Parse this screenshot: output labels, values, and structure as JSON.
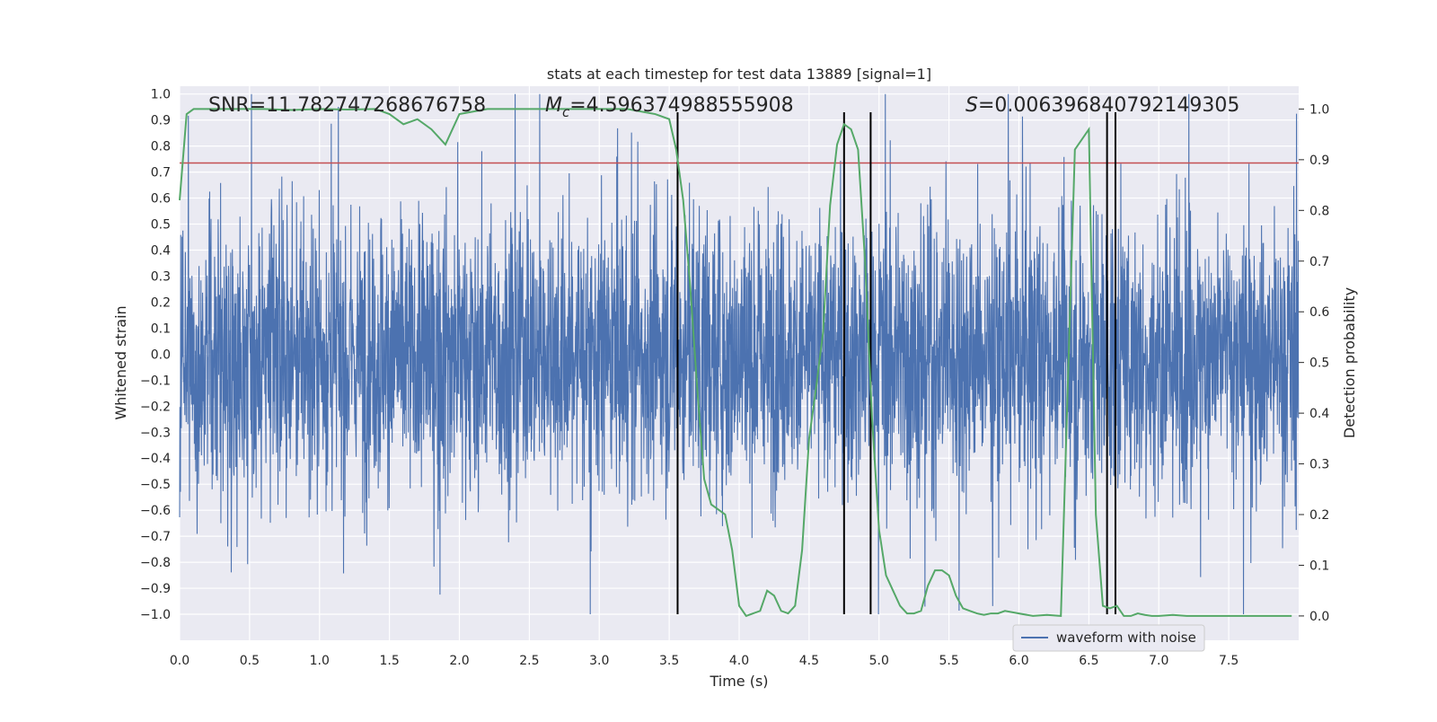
{
  "chart_data": {
    "type": "line",
    "title": "stats at each timestep for test data 13889 [signal=1]",
    "xlabel": "Time (s)",
    "ylabel": "Whitened strain",
    "y2label": "Detection probability",
    "xlim": [
      0.0,
      8.0
    ],
    "ylim": [
      -1.1,
      1.03
    ],
    "y2lim": [
      -0.048,
      1.045
    ],
    "x_ticks": [
      0.0,
      0.5,
      1.0,
      1.5,
      2.0,
      2.5,
      3.0,
      3.5,
      4.0,
      4.5,
      5.0,
      5.5,
      6.0,
      6.5,
      7.0,
      7.5
    ],
    "x_tick_labels": [
      "0.0",
      "0.5",
      "1.0",
      "1.5",
      "2.0",
      "2.5",
      "3.0",
      "3.5",
      "4.0",
      "4.5",
      "5.0",
      "5.5",
      "6.0",
      "6.5",
      "7.0",
      "7.5"
    ],
    "y_ticks": [
      1.0,
      0.9,
      0.8,
      0.7,
      0.6,
      0.5,
      0.4,
      0.3,
      0.2,
      0.1,
      0.0,
      -0.1,
      -0.2,
      -0.3,
      -0.4,
      -0.5,
      -0.6,
      -0.7,
      -0.8,
      -0.9,
      -1.0
    ],
    "y_tick_labels": [
      "1.0",
      "0.9",
      "0.8",
      "0.7",
      "0.6",
      "0.5",
      "0.4",
      "0.3",
      "0.2",
      "0.1",
      "0.0",
      "−0.1",
      "−0.2",
      "−0.3",
      "−0.4",
      "−0.5",
      "−0.6",
      "−0.7",
      "−0.8",
      "−0.9",
      "−1.0"
    ],
    "y2_ticks": [
      1.0,
      0.9,
      0.8,
      0.7,
      0.6,
      0.5,
      0.4,
      0.3,
      0.2,
      0.1,
      0.0
    ],
    "y2_tick_labels": [
      "1.0",
      "0.9",
      "0.8",
      "0.7",
      "0.6",
      "0.5",
      "0.4",
      "0.3",
      "0.2",
      "0.1",
      "0.0"
    ],
    "grid": true,
    "background": "#eaeaf2",
    "annotations": {
      "snr": "SNR=11.782747268676758",
      "mc_symbol": "M",
      "mc_subscript": "c",
      "mc_value": "=4.596374988555908",
      "s_symbol": "S",
      "s_value": "=0.006396840792149305"
    },
    "series": [
      {
        "name": "waveform with noise",
        "axis": "left",
        "color": "#4c72b0",
        "style": "dense-noise",
        "sample_rate_hz": 512,
        "typical_amplitude": 0.5,
        "peak_range": [
          -1.0,
          1.0
        ]
      },
      {
        "axis": "right",
        "color": "#55a868",
        "x": [
          0.0,
          0.05,
          0.1,
          0.2,
          0.4,
          0.6,
          0.8,
          1.0,
          1.2,
          1.4,
          1.5,
          1.6,
          1.65,
          1.7,
          1.8,
          1.9,
          2.0,
          2.2,
          2.4,
          2.6,
          2.8,
          3.0,
          3.2,
          3.4,
          3.5,
          3.55,
          3.6,
          3.65,
          3.7,
          3.75,
          3.8,
          3.85,
          3.9,
          3.95,
          4.0,
          4.05,
          4.1,
          4.15,
          4.2,
          4.25,
          4.3,
          4.35,
          4.4,
          4.45,
          4.5,
          4.55,
          4.6,
          4.65,
          4.7,
          4.75,
          4.8,
          4.85,
          4.9,
          4.95,
          5.0,
          5.05,
          5.1,
          5.15,
          5.2,
          5.25,
          5.3,
          5.35,
          5.4,
          5.45,
          5.5,
          5.55,
          5.6,
          5.65,
          5.7,
          5.75,
          5.8,
          5.85,
          5.9,
          6.0,
          6.1,
          6.2,
          6.3,
          6.4,
          6.5,
          6.55,
          6.6,
          6.65,
          6.7,
          6.75,
          6.8,
          6.85,
          6.9,
          6.95,
          7.0,
          7.1,
          7.2,
          7.3,
          7.4,
          7.5,
          7.6,
          7.7,
          7.8,
          7.9,
          7.95
        ],
        "y": [
          0.82,
          0.99,
          1.0,
          1.0,
          1.0,
          1.0,
          0.998,
          1.0,
          0.999,
          1.0,
          0.99,
          0.97,
          0.975,
          0.98,
          0.96,
          0.93,
          0.99,
          1.0,
          1.0,
          1.0,
          1.0,
          1.0,
          1.0,
          0.99,
          0.98,
          0.92,
          0.82,
          0.65,
          0.45,
          0.27,
          0.22,
          0.21,
          0.2,
          0.13,
          0.02,
          0.0,
          0.005,
          0.01,
          0.05,
          0.04,
          0.01,
          0.005,
          0.02,
          0.13,
          0.35,
          0.45,
          0.56,
          0.81,
          0.93,
          0.97,
          0.96,
          0.92,
          0.7,
          0.39,
          0.17,
          0.08,
          0.05,
          0.02,
          0.005,
          0.005,
          0.01,
          0.06,
          0.09,
          0.09,
          0.08,
          0.04,
          0.015,
          0.01,
          0.005,
          0.002,
          0.005,
          0.005,
          0.01,
          0.005,
          0.0,
          0.002,
          0.0,
          0.92,
          0.96,
          0.2,
          0.02,
          0.015,
          0.02,
          0.0,
          0.0,
          0.005,
          0.002,
          0.0,
          0.0,
          0.002,
          0.0,
          0.0,
          0.0,
          0.0,
          0.0,
          0.0,
          0.0,
          0.0,
          0.0
        ]
      }
    ],
    "threshold": {
      "axis": "left",
      "y": 0.735,
      "color": "#c44e52"
    },
    "event_markers": {
      "color": "#000000",
      "x": [
        3.56,
        4.75,
        4.94,
        6.63,
        6.69
      ],
      "y_range": [
        -1.0,
        0.93
      ]
    },
    "legend": {
      "position": "lower-right"
    }
  }
}
